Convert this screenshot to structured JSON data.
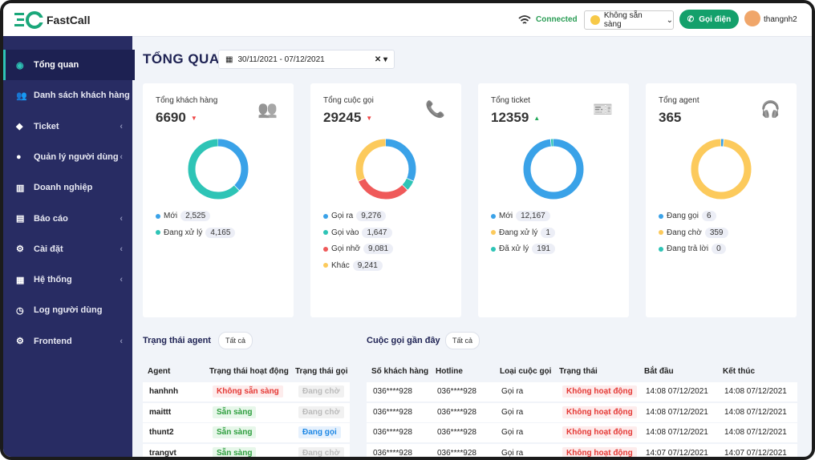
{
  "header": {
    "logo": "FastCall",
    "connection": "Connected",
    "availability": "Không sẵn sàng",
    "call_button": "Gọi điện",
    "user": "thangnh2"
  },
  "sidebar": {
    "items": [
      {
        "label": "Tổng quan",
        "active": true,
        "submenu": false
      },
      {
        "label": "Danh sách khách hàng",
        "active": false,
        "submenu": false
      },
      {
        "label": "Ticket",
        "active": false,
        "submenu": true
      },
      {
        "label": "Quản lý người dùng",
        "active": false,
        "submenu": true
      },
      {
        "label": "Doanh nghiệp",
        "active": false,
        "submenu": false
      },
      {
        "label": "Báo cáo",
        "active": false,
        "submenu": true
      },
      {
        "label": "Cài đặt",
        "active": false,
        "submenu": true
      },
      {
        "label": "Hệ thống",
        "active": false,
        "submenu": true
      },
      {
        "label": "Log người dùng",
        "active": false,
        "submenu": false
      },
      {
        "label": "Frontend",
        "active": false,
        "submenu": true
      }
    ]
  },
  "page": {
    "title": "TỔNG QUAN",
    "date_range": "30/11/2021 - 07/12/2021"
  },
  "cards": [
    {
      "title": "Tổng khách hàng",
      "total": 6690,
      "trend": "down",
      "segments": [
        {
          "label": "Mới",
          "value": 2525,
          "value_label": "2,525",
          "color": "#3aa2e8"
        },
        {
          "label": "Đang xử lý",
          "value": 4165,
          "value_label": "4,165",
          "color": "#2ec4b6"
        }
      ]
    },
    {
      "title": "Tổng cuộc gọi",
      "total": 29245,
      "trend": "down",
      "segments": [
        {
          "label": "Gọi ra",
          "value": 9276,
          "value_label": "9,276",
          "color": "#3aa2e8"
        },
        {
          "label": "Gọi vào",
          "value": 1647,
          "value_label": "1,647",
          "color": "#2ec4b6"
        },
        {
          "label": "Gọi nhỡ",
          "value": 9081,
          "value_label": "9,081",
          "color": "#ef5a5a"
        },
        {
          "label": "Khác",
          "value": 9241,
          "value_label": "9,241",
          "color": "#fcca5c"
        }
      ]
    },
    {
      "title": "Tổng ticket",
      "total": 12359,
      "trend": "up",
      "segments": [
        {
          "label": "Mới",
          "value": 12167,
          "value_label": "12,167",
          "color": "#3aa2e8"
        },
        {
          "label": "Đang xử lý",
          "value": 1,
          "color": "#fcca5c"
        },
        {
          "label": "Đã xử lý",
          "value": 191,
          "color": "#2ec4b6"
        }
      ]
    },
    {
      "title": "Tổng agent",
      "total": 365,
      "trend": "none",
      "segments": [
        {
          "label": "Đang gọi",
          "value": 6,
          "color": "#3aa2e8"
        },
        {
          "label": "Đang chờ",
          "value": 359,
          "color": "#fcca5c"
        },
        {
          "label": "Đang trả lời",
          "value": 0,
          "color": "#2ec4b6"
        }
      ]
    }
  ],
  "agent_table": {
    "title": "Trạng thái agent",
    "filter": "Tất cả",
    "headers": [
      "Agent",
      "Trạng thái hoạt động",
      "Trạng thái gọi"
    ],
    "rows": [
      [
        {
          "text": "hanhnh"
        },
        {
          "text": "Không sẵn sàng",
          "tone": "red"
        },
        {
          "text": "Đang chờ",
          "tone": "grey"
        }
      ],
      [
        {
          "text": "maittt"
        },
        {
          "text": "Sẵn sàng",
          "tone": "green"
        },
        {
          "text": "Đang chờ",
          "tone": "grey"
        }
      ],
      [
        {
          "text": "thunt2"
        },
        {
          "text": "Sẵn sàng",
          "tone": "green"
        },
        {
          "text": "Đang gọi",
          "tone": "blue"
        }
      ],
      [
        {
          "text": "trangvt"
        },
        {
          "text": "Sẵn sàng",
          "tone": "green"
        },
        {
          "text": "Đang chờ",
          "tone": "grey"
        }
      ]
    ]
  },
  "call_table": {
    "title": "Cuộc gọi gần đây",
    "filter": "Tất cả",
    "headers": [
      "Số khách hàng",
      "Hotline",
      "Loại cuộc gọi",
      "Trạng thái",
      "Bắt đầu",
      "Kết thúc"
    ],
    "rows": [
      [
        {
          "text": "036****928"
        },
        {
          "text": "036****928"
        },
        {
          "text": "Gọi ra"
        },
        {
          "text": "Không hoạt động",
          "tone": "red"
        },
        {
          "text": "14:08 07/12/2021"
        },
        {
          "text": "14:08 07/12/2021"
        }
      ],
      [
        {
          "text": "036****928"
        },
        {
          "text": "036****928"
        },
        {
          "text": "Gọi ra"
        },
        {
          "text": "Không hoạt động",
          "tone": "red"
        },
        {
          "text": "14:08 07/12/2021"
        },
        {
          "text": "14:08 07/12/2021"
        }
      ],
      [
        {
          "text": "036****928"
        },
        {
          "text": "036****928"
        },
        {
          "text": "Gọi ra"
        },
        {
          "text": "Không hoạt động",
          "tone": "red"
        },
        {
          "text": "14:08 07/12/2021"
        },
        {
          "text": "14:08 07/12/2021"
        }
      ],
      [
        {
          "text": "036****928"
        },
        {
          "text": "036****928"
        },
        {
          "text": "Gọi ra"
        },
        {
          "text": "Không hoạt động",
          "tone": "red"
        },
        {
          "text": "14:07 07/12/2021"
        },
        {
          "text": "14:07 07/12/2021"
        }
      ]
    ]
  }
}
